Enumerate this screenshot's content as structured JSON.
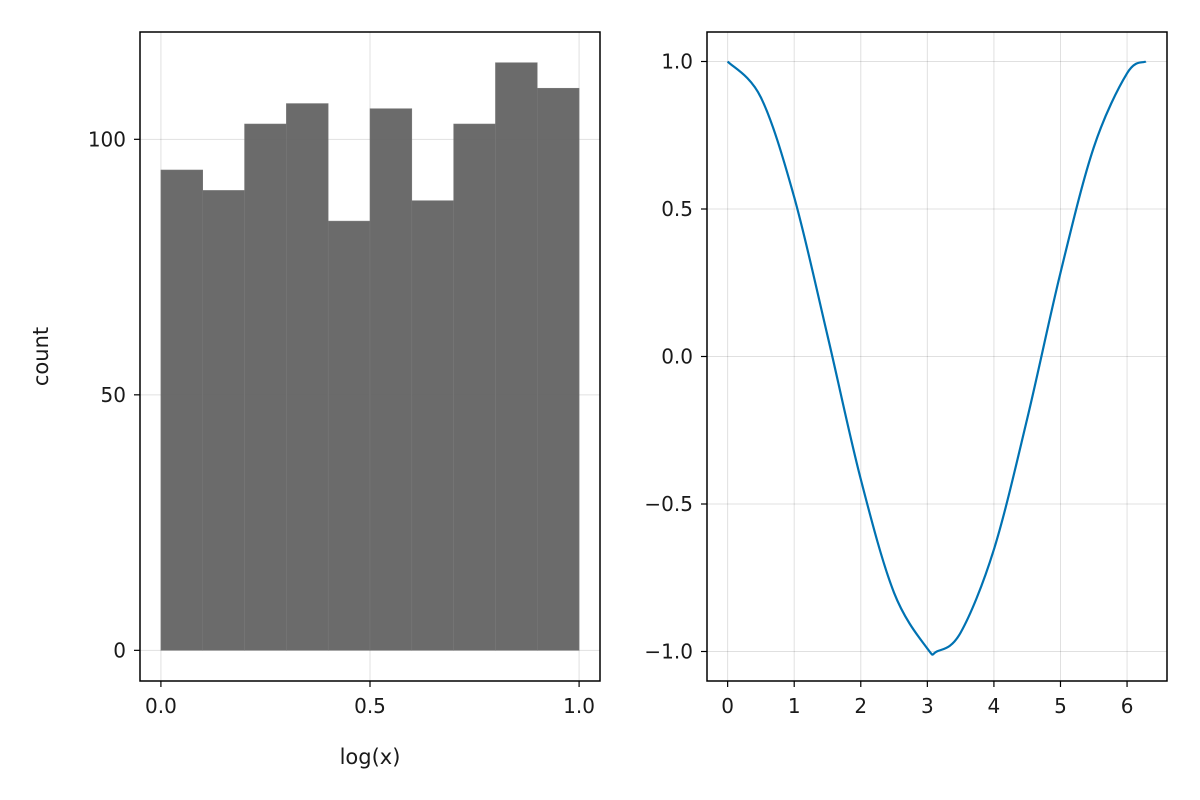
{
  "chart_data": [
    {
      "type": "bar",
      "subtype": "histogram",
      "title": "",
      "xlabel": "log(x)",
      "ylabel": "count",
      "bin_edges": [
        0.0,
        0.1,
        0.2,
        0.3,
        0.4,
        0.5,
        0.6,
        0.7,
        0.8,
        0.9,
        1.0
      ],
      "values": [
        94,
        90,
        103,
        107,
        84,
        106,
        88,
        103,
        115,
        110
      ],
      "xlim": [
        -0.05,
        1.05
      ],
      "ylim": [
        -6,
        121
      ],
      "xticks": [
        0.0,
        0.5,
        1.0
      ],
      "xtick_labels": [
        "0.0",
        "0.5",
        "1.0"
      ],
      "yticks": [
        0,
        50,
        100
      ],
      "ytick_labels": [
        "0",
        "50",
        "100"
      ],
      "bar_color": "#666666",
      "grid": true
    },
    {
      "type": "line",
      "title": "",
      "xlabel": "",
      "ylabel": "",
      "series": [
        {
          "x": [
            0,
            0.5,
            1.0,
            1.5,
            2.0,
            2.5,
            3.0,
            3.14159,
            3.5,
            4.0,
            4.5,
            5.0,
            5.5,
            6.0,
            6.28318
          ],
          "y": [
            1.0,
            0.878,
            0.54,
            0.071,
            -0.416,
            -0.801,
            -0.99,
            -1.0,
            -0.936,
            -0.654,
            -0.211,
            0.284,
            0.709,
            0.96,
            1.0
          ]
        }
      ],
      "xlim": [
        -0.31,
        6.6
      ],
      "ylim": [
        -1.1,
        1.1
      ],
      "xticks": [
        0,
        1,
        2,
        3,
        4,
        5,
        6
      ],
      "xtick_labels": [
        "0",
        "1",
        "2",
        "3",
        "4",
        "5",
        "6"
      ],
      "yticks": [
        -1.0,
        -0.5,
        0.0,
        0.5,
        1.0
      ],
      "ytick_labels": [
        "−1.0",
        "−0.5",
        "0.0",
        "0.5",
        "1.0"
      ],
      "line_color": "#0072b2",
      "grid": true
    }
  ]
}
